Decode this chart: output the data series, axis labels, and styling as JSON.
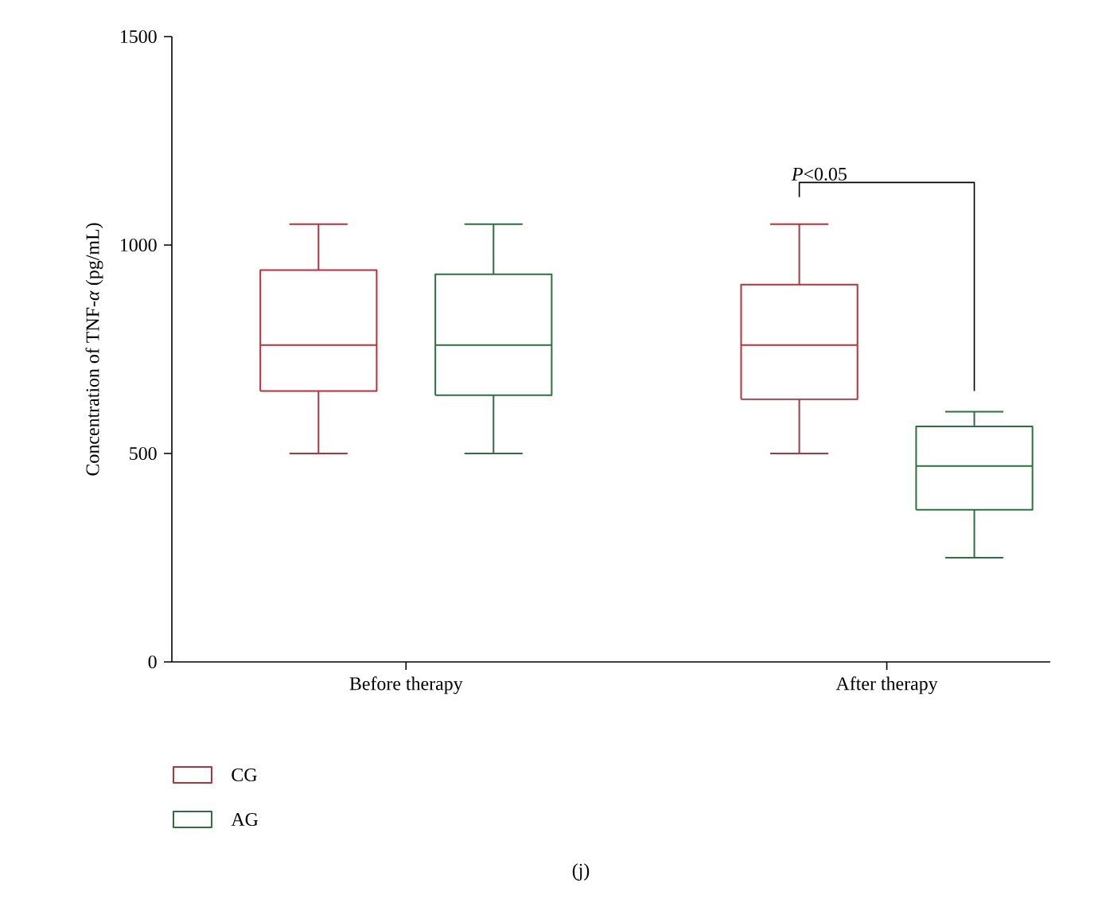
{
  "chart_data": {
    "type": "box",
    "ylabel": "Concentration of TNF-*α* (pg/mL)",
    "categories": [
      "Before therapy",
      "After therapy"
    ],
    "series": [
      {
        "name": "CG",
        "color": "#b0343c",
        "boxes": [
          {
            "low": 500,
            "q1": 650,
            "median": 760,
            "q3": 940,
            "high": 1050
          },
          {
            "low": 500,
            "q1": 630,
            "median": 760,
            "q3": 905,
            "high": 1050
          }
        ]
      },
      {
        "name": "AG",
        "color": "#2f6e3e",
        "boxes": [
          {
            "low": 500,
            "q1": 640,
            "median": 760,
            "q3": 930,
            "high": 1050
          },
          {
            "low": 250,
            "q1": 365,
            "median": 470,
            "q3": 565,
            "high": 600
          }
        ]
      }
    ],
    "ylim": [
      0,
      1500
    ],
    "yticks": [
      0,
      500,
      1000,
      1500
    ],
    "grid": false,
    "legend": "bottom left",
    "annotations": [
      "*P*<0.05",
      "(j)"
    ]
  }
}
